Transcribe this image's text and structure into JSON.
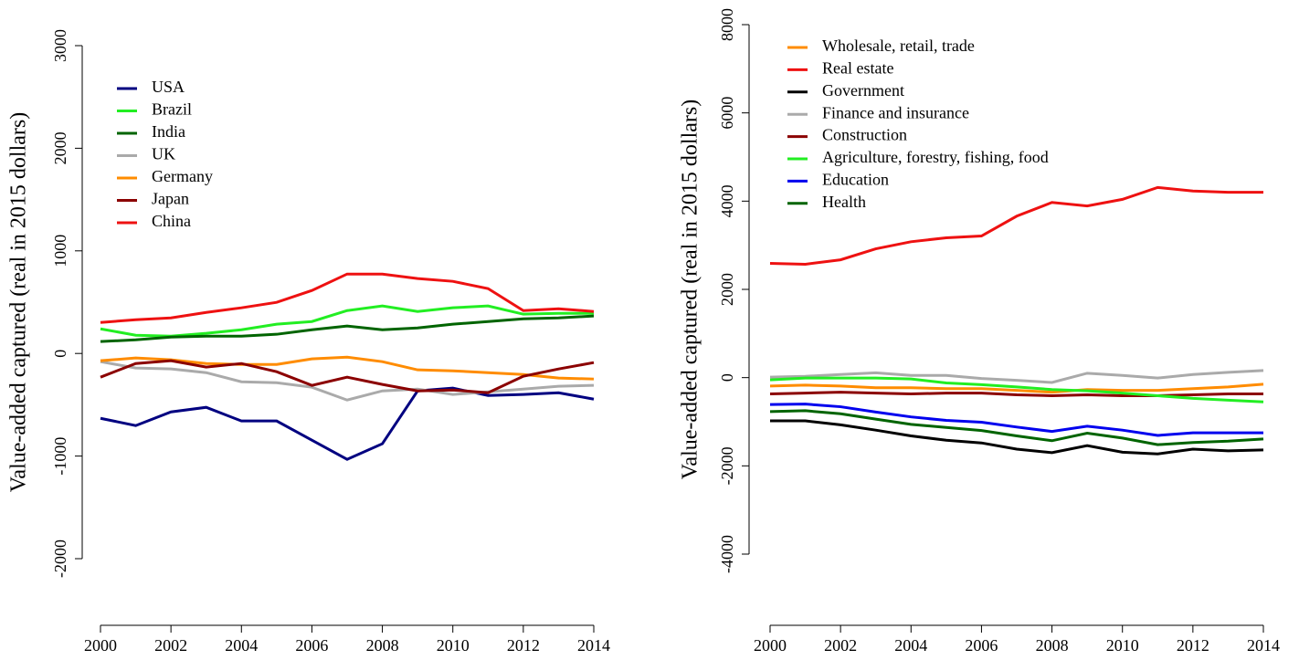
{
  "chart_data": [
    {
      "type": "line",
      "ylabel": "Value-added captured (real in 2015 dollars)",
      "x": [
        2000,
        2001,
        2002,
        2003,
        2004,
        2005,
        2006,
        2007,
        2008,
        2009,
        2010,
        2011,
        2012,
        2013,
        2014
      ],
      "xlim": [
        2000,
        2014
      ],
      "xticks": [
        2000,
        2002,
        2004,
        2006,
        2008,
        2010,
        2012,
        2014
      ],
      "ylim": [
        -2000,
        3000
      ],
      "yticks": [
        -2000,
        -1000,
        0,
        1000,
        2000,
        3000
      ],
      "legend": "top-left",
      "series": [
        {
          "name": "USA",
          "color": "#000080",
          "values": [
            -632,
            -703,
            -570,
            -525,
            -658,
            -658,
            -845,
            -1032,
            -880,
            -365,
            -338,
            -410,
            -400,
            -383,
            -445
          ]
        },
        {
          "name": "Brazil",
          "color": "#22ee22",
          "values": [
            240,
            178,
            169,
            196,
            231,
            285,
            311,
            418,
            463,
            409,
            445,
            463,
            383,
            391,
            391
          ]
        },
        {
          "name": "India",
          "color": "#006400",
          "values": [
            116,
            133,
            160,
            169,
            169,
            187,
            231,
            267,
            231,
            249,
            285,
            311,
            338,
            347,
            365
          ]
        },
        {
          "name": "UK",
          "color": "#aaaaaa",
          "values": [
            -80,
            -142,
            -151,
            -187,
            -276,
            -285,
            -329,
            -454,
            -365,
            -347,
            -400,
            -374,
            -347,
            -320,
            -311
          ]
        },
        {
          "name": "Germany",
          "color": "#ff8c00",
          "values": [
            -71,
            -44,
            -62,
            -98,
            -107,
            -107,
            -53,
            -36,
            -80,
            -160,
            -169,
            -187,
            -205,
            -240,
            -249
          ]
        },
        {
          "name": "Japan",
          "color": "#8b0000",
          "values": [
            -231,
            -98,
            -71,
            -133,
            -98,
            -178,
            -311,
            -231,
            -302,
            -365,
            -356,
            -383,
            -222,
            -151,
            -89
          ]
        },
        {
          "name": "China",
          "color": "#ee1111",
          "values": [
            302,
            329,
            347,
            400,
            445,
            498,
            614,
            774,
            774,
            730,
            703,
            632,
            418,
            436,
            409
          ]
        }
      ]
    },
    {
      "type": "line",
      "ylabel": "Value-added captured (real in 2015 dollars)",
      "x": [
        2000,
        2001,
        2002,
        2003,
        2004,
        2005,
        2006,
        2007,
        2008,
        2009,
        2010,
        2011,
        2012,
        2013,
        2014
      ],
      "xlim": [
        2000,
        2014
      ],
      "xticks": [
        2000,
        2002,
        2004,
        2006,
        2008,
        2010,
        2012,
        2014
      ],
      "ylim": [
        -4000,
        8000
      ],
      "yticks": [
        -4000,
        -2000,
        0,
        2000,
        4000,
        6000,
        8000
      ],
      "legend": "top-left",
      "series": [
        {
          "name": "Wholesale, retail, trade",
          "color": "#ff8c00",
          "values": [
            -190,
            -170,
            -190,
            -230,
            -230,
            -250,
            -250,
            -290,
            -330,
            -270,
            -290,
            -290,
            -250,
            -210,
            -150
          ]
        },
        {
          "name": "Real estate",
          "color": "#ee1111",
          "values": [
            2590,
            2570,
            2670,
            2920,
            3080,
            3170,
            3210,
            3660,
            3970,
            3890,
            4040,
            4310,
            4230,
            4200,
            4200
          ]
        },
        {
          "name": "Government",
          "color": "#000000",
          "values": [
            -980,
            -980,
            -1070,
            -1190,
            -1320,
            -1420,
            -1480,
            -1620,
            -1700,
            -1540,
            -1690,
            -1730,
            -1620,
            -1660,
            -1640
          ]
        },
        {
          "name": "Finance and insurance",
          "color": "#aaaaaa",
          "values": [
            10,
            30,
            70,
            110,
            50,
            50,
            -20,
            -60,
            -110,
            100,
            50,
            -10,
            70,
            120,
            160
          ]
        },
        {
          "name": "Construction",
          "color": "#8b0000",
          "values": [
            -370,
            -350,
            -330,
            -350,
            -370,
            -350,
            -350,
            -390,
            -410,
            -390,
            -410,
            -410,
            -390,
            -370,
            -370
          ]
        },
        {
          "name": "Agriculture, forestry, fishing, food",
          "color": "#22ee22",
          "values": [
            -50,
            -10,
            -10,
            -10,
            -30,
            -120,
            -160,
            -210,
            -270,
            -300,
            -350,
            -410,
            -470,
            -510,
            -550
          ]
        },
        {
          "name": "Education",
          "color": "#0000ee",
          "values": [
            -610,
            -600,
            -660,
            -780,
            -890,
            -970,
            -1010,
            -1120,
            -1220,
            -1100,
            -1190,
            -1310,
            -1250,
            -1250,
            -1250
          ]
        },
        {
          "name": "Health",
          "color": "#006400",
          "values": [
            -770,
            -750,
            -820,
            -940,
            -1060,
            -1130,
            -1200,
            -1320,
            -1430,
            -1260,
            -1370,
            -1520,
            -1470,
            -1440,
            -1390
          ]
        }
      ]
    }
  ]
}
